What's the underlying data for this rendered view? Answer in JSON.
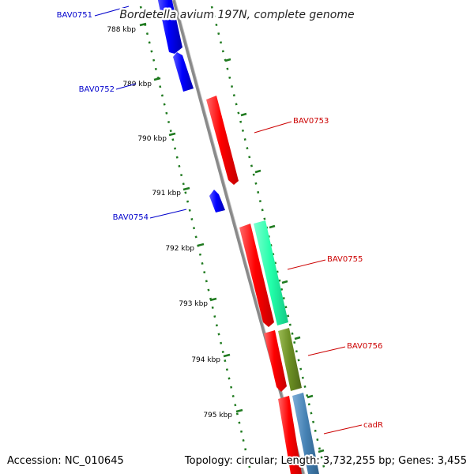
{
  "title": "Bordetella avium 197N, complete genome",
  "footer": {
    "accession": "Accession: NC_010645",
    "summary": "Topology: circular; Length: 3,732,255 bp; Genes: 3,455"
  },
  "colors": {
    "background": "#ffffff",
    "backbone": "#8a8a8a",
    "tick": "#1f7a1f",
    "forward_gene": "#ff0000",
    "reverse_gene": "#0000ff",
    "forward_label": "#cc0000",
    "reverse_label": "#0000cc",
    "cog_cyan": "#22ffaa",
    "cog_olive": "#6b8e23",
    "cog_steel": "#4682b4"
  },
  "ticks": [
    {
      "label": "788 kbp"
    },
    {
      "label": "789 kbp"
    },
    {
      "label": "790 kbp"
    },
    {
      "label": "791 kbp"
    },
    {
      "label": "792 kbp"
    },
    {
      "label": "793 kbp"
    },
    {
      "label": "794 kbp"
    },
    {
      "label": "795 kbp"
    }
  ],
  "genes": [
    {
      "name": "BAV0751",
      "strand": "reverse"
    },
    {
      "name": "BAV0752",
      "strand": "reverse"
    },
    {
      "name": "BAV0753",
      "strand": "forward"
    },
    {
      "name": "BAV0754",
      "strand": "reverse"
    },
    {
      "name": "BAV0755",
      "strand": "forward"
    },
    {
      "name": "BAV0756",
      "strand": "forward"
    },
    {
      "name": "cadR",
      "strand": "forward"
    }
  ]
}
